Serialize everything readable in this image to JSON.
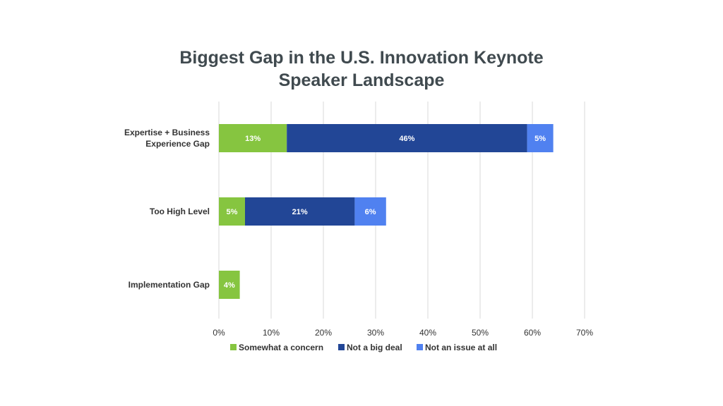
{
  "chart_data": {
    "type": "bar",
    "orientation": "horizontal",
    "stacked": true,
    "title_lines": [
      "Biggest Gap in the U.S. Innovation Keynote",
      "Speaker Landscape"
    ],
    "categories": [
      {
        "lines": [
          "Expertise + Business",
          "Experience Gap"
        ]
      },
      {
        "lines": [
          "Too High Level"
        ]
      },
      {
        "lines": [
          "Implementation Gap"
        ]
      }
    ],
    "series": [
      {
        "name": "Somewhat a concern",
        "color": "#86c540",
        "values": [
          13,
          5,
          4
        ],
        "labels": [
          "13%",
          "5%",
          "4%"
        ]
      },
      {
        "name": "Not a big deal",
        "color": "#224696",
        "values": [
          46,
          21,
          0
        ],
        "labels": [
          "46%",
          "21%",
          ""
        ]
      },
      {
        "name": "Not an issue at all",
        "color": "#5081f0",
        "values": [
          5,
          6,
          0
        ],
        "labels": [
          "5%",
          "6%",
          ""
        ]
      }
    ],
    "xlim": [
      0,
      70
    ],
    "xticks": [
      0,
      10,
      20,
      30,
      40,
      50,
      60,
      70
    ],
    "xtick_labels": [
      "0%",
      "10%",
      "20%",
      "30%",
      "40%",
      "50%",
      "60%",
      "70%"
    ],
    "grid": true,
    "legend_position": "bottom"
  }
}
